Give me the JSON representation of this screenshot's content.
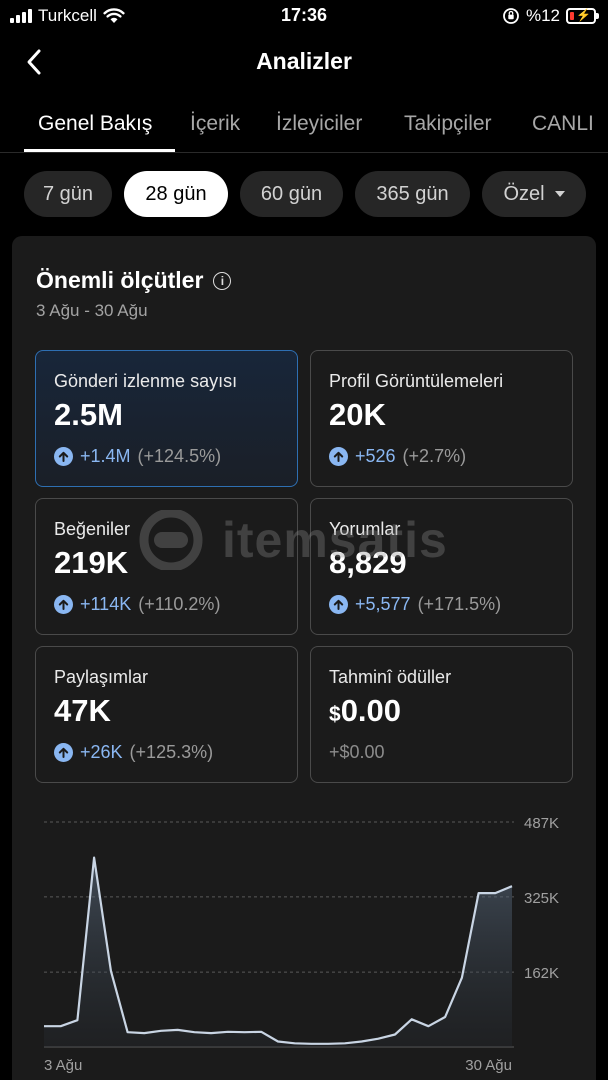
{
  "status_bar": {
    "carrier": "Turkcell",
    "time": "17:36",
    "battery": "%12"
  },
  "header": {
    "title": "Analizler"
  },
  "tabs": [
    {
      "label": "Genel Bakış",
      "active": true
    },
    {
      "label": "İçerik"
    },
    {
      "label": "İzleyiciler"
    },
    {
      "label": "Takipçiler"
    },
    {
      "label": "CANLI"
    }
  ],
  "periods": [
    {
      "label": "7 gün"
    },
    {
      "label": "28 gün",
      "active": true
    },
    {
      "label": "60 gün"
    },
    {
      "label": "365 gün"
    },
    {
      "label": "Özel",
      "dropdown": true
    }
  ],
  "key_metrics": {
    "title": "Önemli ölçütler",
    "date_range": "3 Ağu - 30 Ağu",
    "items": [
      {
        "label": "Gönderi izlenme sayısı",
        "value": "2.5M",
        "delta": "+1.4M",
        "pct": "(+124.5%)",
        "selected": true
      },
      {
        "label": "Profil Görüntülemeleri",
        "value": "20K",
        "delta": "+526",
        "pct": "(+2.7%)"
      },
      {
        "label": "Beğeniler",
        "value": "219K",
        "delta": "+114K",
        "pct": "(+110.2%)"
      },
      {
        "label": "Yorumlar",
        "value": "8,829",
        "delta": "+5,577",
        "pct": "(+171.5%)"
      },
      {
        "label": "Paylaşımlar",
        "value": "47K",
        "delta": "+26K",
        "pct": "(+125.3%)"
      },
      {
        "label": "Tahminî ödüller",
        "currency": "$",
        "value": "0.00",
        "delta_plain": "+$0.00"
      }
    ]
  },
  "watermark": "itemsatis",
  "colors": {
    "accent": "#8ab7f2",
    "selected_border": "#2e6fb2",
    "card_bg": "#1b1b1b"
  },
  "chart_data": {
    "type": "area",
    "series": [
      {
        "values": [
          45,
          45,
          58,
          410,
          165,
          32,
          30,
          35,
          37,
          32,
          30,
          33,
          32,
          33,
          12,
          8,
          7,
          7,
          8,
          12,
          18,
          27,
          60,
          45,
          65,
          150,
          333,
          333,
          348
        ]
      }
    ],
    "x_tick_labels": [
      "3 Ağu",
      "30 Ağu"
    ],
    "y_tick_labels": [
      "487K",
      "325K",
      "162K"
    ],
    "y_ticks": [
      487,
      325,
      162
    ],
    "ylim": [
      0,
      487
    ],
    "grid": true,
    "y_axis_position": "right"
  }
}
